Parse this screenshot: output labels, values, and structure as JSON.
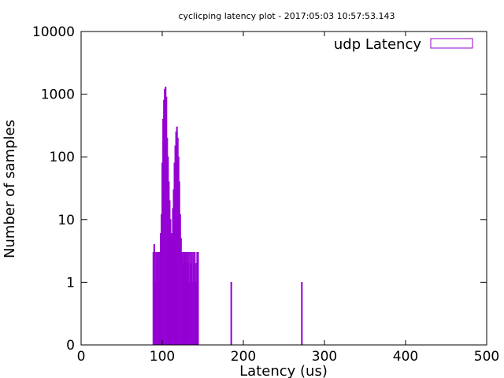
{
  "chart_data": {
    "type": "bar",
    "title": "cyclicping latency plot - 2017:05:03 10:57:53.143",
    "xlabel": "Latency (us)",
    "ylabel": "Number of samples",
    "xlim": [
      0,
      500
    ],
    "ylim": [
      0,
      10000
    ],
    "y_scale": "log",
    "x_ticks": [
      "0",
      "100",
      "200",
      "300",
      "400",
      "500"
    ],
    "y_ticks": [
      "0",
      "1",
      "10",
      "100",
      "1000",
      "10000"
    ],
    "legend_position": "top-right",
    "grid": false,
    "color": "#9400d3",
    "series": [
      {
        "name": "udp Latency",
        "x": [
          89,
          90,
          91,
          92,
          93,
          94,
          95,
          96,
          97,
          98,
          99,
          100,
          101,
          102,
          103,
          104,
          105,
          106,
          107,
          108,
          109,
          110,
          111,
          112,
          113,
          114,
          115,
          116,
          117,
          118,
          119,
          120,
          121,
          122,
          123,
          124,
          125,
          126,
          127,
          128,
          129,
          130,
          131,
          132,
          133,
          134,
          135,
          136,
          137,
          138,
          139,
          140,
          141,
          142,
          143,
          144,
          185,
          272
        ],
        "values": [
          3,
          4,
          3,
          1,
          3,
          2,
          3,
          1,
          3,
          6,
          12,
          80,
          400,
          800,
          1200,
          1300,
          900,
          200,
          100,
          40,
          20,
          10,
          6,
          5,
          15,
          30,
          80,
          150,
          250,
          300,
          200,
          100,
          40,
          12,
          5,
          3,
          3,
          2,
          3,
          3,
          2,
          3,
          2,
          3,
          1,
          3,
          2,
          3,
          1,
          3,
          2,
          3,
          1,
          2,
          3,
          3,
          1,
          1
        ]
      }
    ]
  }
}
